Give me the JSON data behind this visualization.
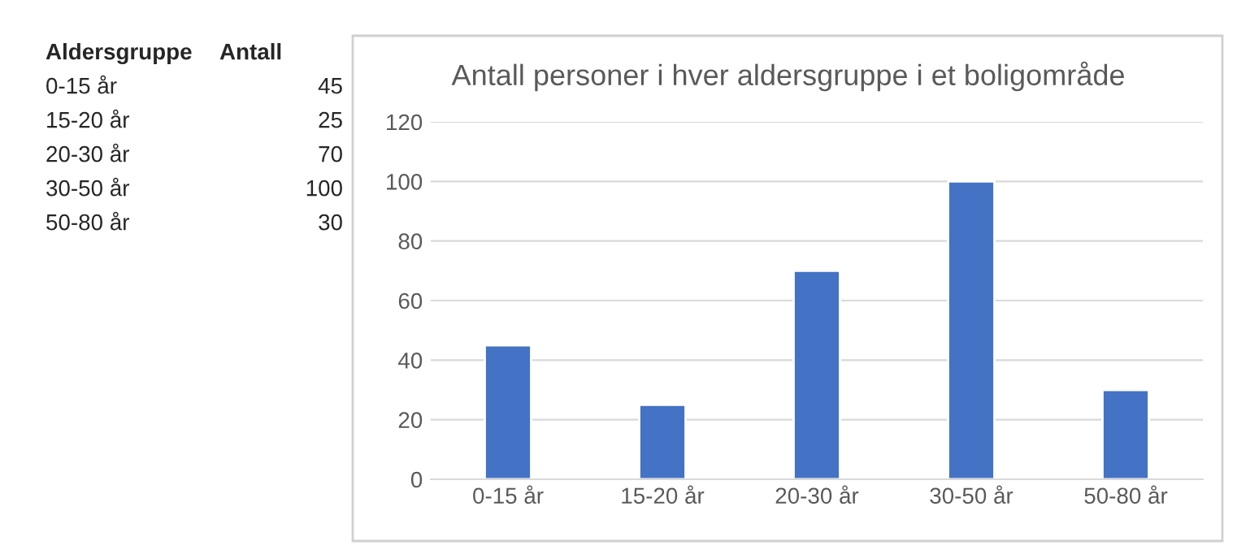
{
  "chart_data": {
    "type": "bar",
    "title": "Antall personer i hver aldersgruppe i et boligområde",
    "categories": [
      "0-15 år",
      "15-20 år",
      "20-30 år",
      "30-50 år",
      "50-80 år"
    ],
    "values": [
      45,
      25,
      70,
      100,
      30
    ],
    "color": "#4472c4",
    "ylim": [
      0,
      120
    ],
    "yticks": [
      0,
      20,
      40,
      60,
      80,
      100,
      120
    ],
    "grid": "y",
    "annotations": [
      "Aldersgruppe",
      "Antall",
      "0-15 år",
      "45",
      "15-20 år",
      "25",
      "20-30 år",
      "70",
      "30-50 år",
      "100",
      "50-80 år",
      "30"
    ]
  }
}
